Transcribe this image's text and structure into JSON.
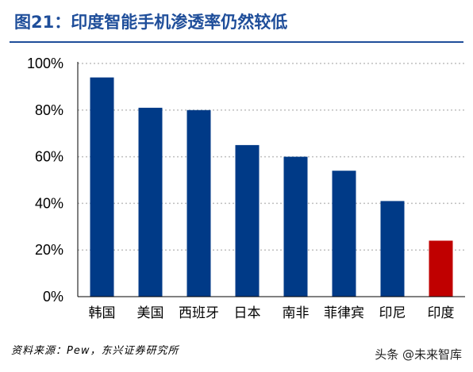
{
  "title": "图21：印度智能手机渗透率仍然较低",
  "source": "资料来源：Pew，东兴证券研究所",
  "watermark": "头条 @未来智库",
  "colors": {
    "title": "#1f4e9a",
    "bar": "#003a87",
    "highlight": "#c00000",
    "grid": "#bfbfbf"
  },
  "chart_data": {
    "type": "bar",
    "categories": [
      "韩国",
      "美国",
      "西班牙",
      "日本",
      "南非",
      "菲律宾",
      "印尼",
      "印度"
    ],
    "values": [
      94,
      81,
      80,
      65,
      60,
      54,
      41,
      24
    ],
    "highlight_index": 7,
    "ylim": [
      0,
      100
    ],
    "yticks": [
      "0%",
      "20%",
      "40%",
      "60%",
      "80%",
      "100%"
    ],
    "grid": true,
    "xlabel": "",
    "ylabel": ""
  }
}
